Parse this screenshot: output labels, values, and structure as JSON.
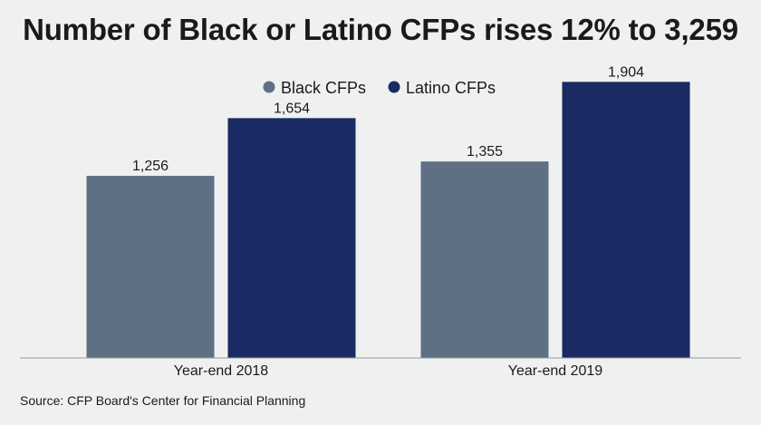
{
  "chart_data": {
    "type": "bar",
    "title": "Number of Black or Latino CFPs rises 12% to 3,259",
    "categories": [
      "Year-end 2018",
      "Year-end 2019"
    ],
    "series": [
      {
        "name": "Black CFPs",
        "color": "#5f7085",
        "values": [
          1256,
          1355
        ],
        "labels": [
          "1,256",
          "1,355"
        ]
      },
      {
        "name": "Latino CFPs",
        "color": "#1b2a63",
        "values": [
          1654,
          1904
        ],
        "labels": [
          "1,654",
          "1,904"
        ]
      }
    ],
    "ylim": [
      0,
      2000
    ],
    "grid": false,
    "legend": "top-center",
    "source": "Source: CFP Board's Center for Financial Planning"
  }
}
